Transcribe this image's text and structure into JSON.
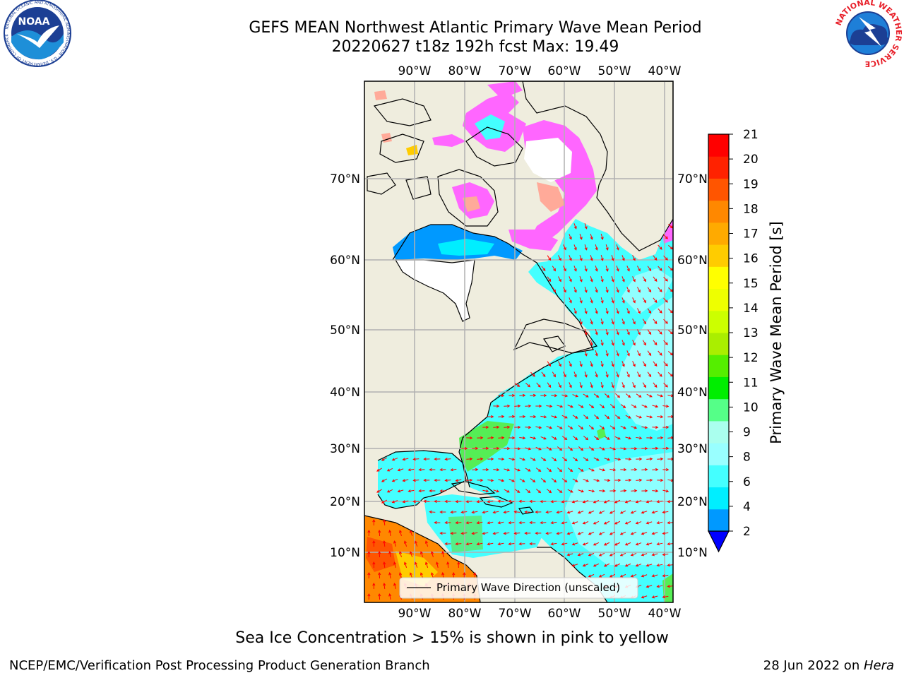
{
  "header": {
    "title_line1": "GEFS MEAN Northwest Atlantic Primary Wave Mean Period",
    "title_line2": "20220627 t18z 192h fcst   Max: 19.49"
  },
  "logos": {
    "left": "NOAA",
    "left_ring": "NATIONAL OCEANIC AND ATMOSPHERIC ADMINISTRATION · U.S. DEPARTMENT OF COMMERCE",
    "right_ring": "NATIONAL WEATHER SERVICE"
  },
  "map": {
    "lon_ticks": [
      "90°W",
      "80°W",
      "70°W",
      "60°W",
      "50°W",
      "40°W"
    ],
    "lat_ticks": [
      "70°N",
      "60°N",
      "50°N",
      "40°N",
      "30°N",
      "20°N",
      "10°N"
    ],
    "legend_label": "Primary Wave Direction (unscaled)",
    "colors": {
      "land": "#efedde",
      "ocean_short": "#33ffff",
      "ocean_mid": "#99ffff",
      "ice_pink": "#ff66ff",
      "ice_salmon": "#ffaa99",
      "green": "#55ee55",
      "orange": "#ff8800",
      "arrow": "#ff0000"
    }
  },
  "colorbar": {
    "label": "Primary Wave Mean Period [s]",
    "ticks": [
      "2",
      "4",
      "6",
      "8",
      "9",
      "10",
      "11",
      "12",
      "13",
      "14",
      "15",
      "16",
      "17",
      "18",
      "19",
      "20",
      "21"
    ],
    "band_colors": [
      "#0099ff",
      "#00eeff",
      "#44ffff",
      "#99ffff",
      "#aaffee",
      "#55ff88",
      "#00ee00",
      "#55ee00",
      "#aaee00",
      "#ccff00",
      "#eeff00",
      "#ffff00",
      "#ffcc00",
      "#ffaa00",
      "#ff8800",
      "#ff5500",
      "#ff2200",
      "#ff0000"
    ],
    "extend_color": "#0000ff"
  },
  "caption": "Sea Ice Concentration > 15% is shown in pink to yellow",
  "footer": {
    "left": "NCEP/EMC/Verification Post Processing Product Generation Branch",
    "right_date": "28 Jun 2022 on ",
    "right_machine": "Hera"
  }
}
